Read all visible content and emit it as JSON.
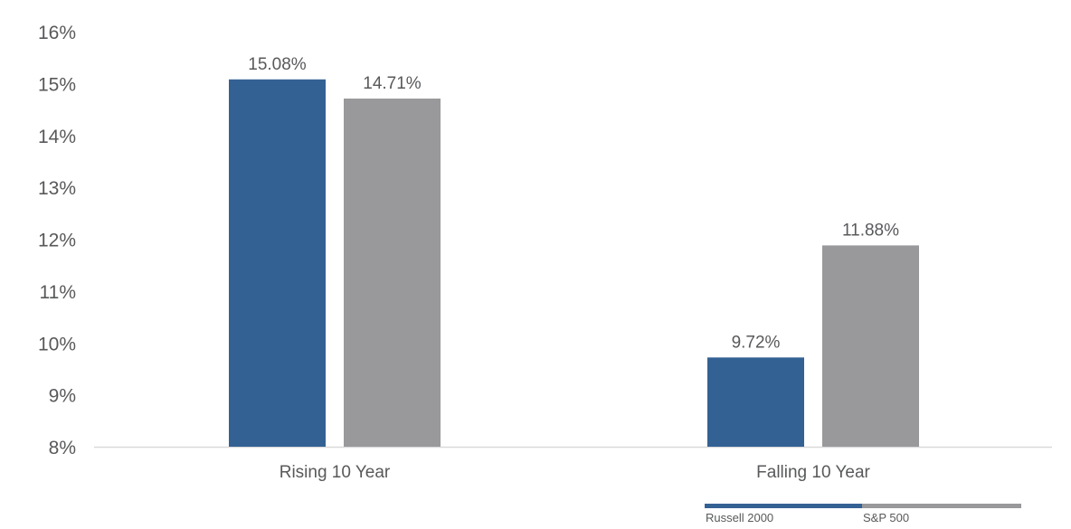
{
  "chart_data": {
    "type": "bar",
    "categories": [
      "Rising 10 Year",
      "Falling 10 Year"
    ],
    "series": [
      {
        "name": "Russell 2000",
        "values": [
          15.08,
          9.72
        ],
        "labels": [
          "15.08%",
          "9.72%"
        ],
        "color": "#346194"
      },
      {
        "name": "S&P 500",
        "values": [
          14.71,
          11.88
        ],
        "labels": [
          "14.71%",
          "11.88%"
        ],
        "color": "#99999b"
      }
    ],
    "ylim": [
      8,
      16
    ],
    "yticks": [
      8,
      9,
      10,
      11,
      12,
      13,
      14,
      15,
      16
    ],
    "ytick_labels": [
      "8%",
      "9%",
      "10%",
      "11%",
      "12%",
      "13%",
      "14%",
      "15%",
      "16%"
    ],
    "legend_position": "bottom-right",
    "grid": false,
    "axis_color": "#d9d9d9"
  }
}
